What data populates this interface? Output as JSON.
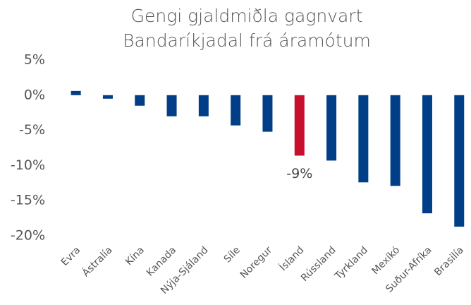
{
  "chart_data": {
    "type": "bar",
    "title": [
      "Gengi gjaldmiðla gagnvart",
      "Bandaríkjadal frá áramótum"
    ],
    "categories": [
      "Evra",
      "Ástralía",
      "Kína",
      "Kanada",
      "Nýja-Sjáland",
      "Síle",
      "Noregur",
      "Ísland",
      "Rússland",
      "Tyrkland",
      "Mexíkó",
      "Suður-Afríka",
      "Brasilía"
    ],
    "values": [
      0.6,
      -0.5,
      -1.5,
      -3.0,
      -3.0,
      -4.3,
      -5.2,
      -8.6,
      -9.3,
      -12.4,
      -12.9,
      -16.8,
      -18.7
    ],
    "colors": [
      "#003f87",
      "#003f87",
      "#003f87",
      "#003f87",
      "#003f87",
      "#003f87",
      "#003f87",
      "#c8102e",
      "#003f87",
      "#003f87",
      "#003f87",
      "#003f87",
      "#003f87"
    ],
    "ylim": [
      -20,
      5
    ],
    "yticks": [
      {
        "value": 5,
        "label": "5%"
      },
      {
        "value": 0,
        "label": "0%"
      },
      {
        "value": -5,
        "label": "-5%"
      },
      {
        "value": -10,
        "label": "-10%"
      },
      {
        "value": -15,
        "label": "-15%"
      },
      {
        "value": -20,
        "label": "-20%"
      }
    ],
    "grid": false,
    "annotations": [
      {
        "text": "-9%",
        "category": "Ísland"
      }
    ]
  }
}
